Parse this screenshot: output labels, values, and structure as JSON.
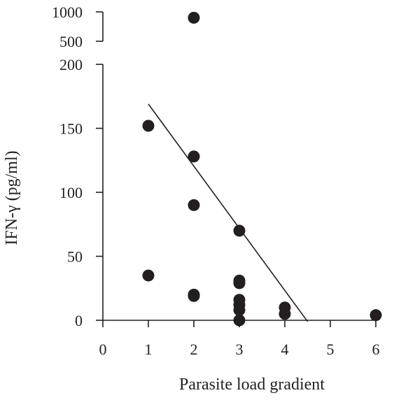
{
  "chart_data": {
    "type": "scatter",
    "title": "",
    "xlabel": "Parasite load gradient",
    "ylabel": "IFN-γ (pg/ml)",
    "x_ticks": [
      0,
      1,
      2,
      3,
      4,
      5,
      6
    ],
    "y_ticks": [
      0,
      50,
      100,
      150,
      200
    ],
    "y_break_ticks": [
      500,
      1000
    ],
    "xlim": [
      0,
      6
    ],
    "ylim": [
      0,
      200
    ],
    "axis_break": true,
    "grid": false,
    "series": [
      {
        "color": "#231f20",
        "points": [
          {
            "x": 1,
            "y": 152
          },
          {
            "x": 1,
            "y": 35
          },
          {
            "x": 2,
            "y": 900
          },
          {
            "x": 2,
            "y": 128
          },
          {
            "x": 2,
            "y": 90
          },
          {
            "x": 2,
            "y": 20
          },
          {
            "x": 2,
            "y": 19
          },
          {
            "x": 3,
            "y": 70
          },
          {
            "x": 3,
            "y": 31
          },
          {
            "x": 3,
            "y": 29
          },
          {
            "x": 3,
            "y": 16
          },
          {
            "x": 3,
            "y": 12
          },
          {
            "x": 3,
            "y": 8
          },
          {
            "x": 3,
            "y": 0
          },
          {
            "x": 4,
            "y": 10
          },
          {
            "x": 4,
            "y": 5
          },
          {
            "x": 6,
            "y": 4
          }
        ]
      }
    ],
    "trendline": {
      "x1": 1,
      "y1": 169,
      "x2": 4.5,
      "y2": -1
    }
  }
}
